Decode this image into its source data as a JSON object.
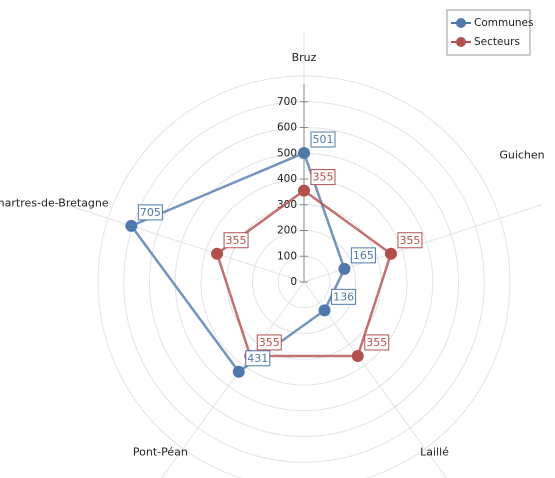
{
  "chart_data": {
    "type": "radar",
    "categories": [
      "Bruz",
      "Guichen",
      "Laillé",
      "Pont-Péan",
      "Chartres-de-Bretagne"
    ],
    "series": [
      {
        "name": "Communes",
        "color": "#4f79ac",
        "values": [
          501,
          165,
          136,
          431,
          705
        ]
      },
      {
        "name": "Secteurs",
        "color": "#b3504d",
        "values": [
          355,
          355,
          355,
          355,
          355
        ]
      }
    ],
    "ylim": [
      0,
      800
    ],
    "yticks": [
      0,
      100,
      200,
      300,
      400,
      500,
      600,
      700
    ],
    "grid": true,
    "legend": "top-right"
  }
}
